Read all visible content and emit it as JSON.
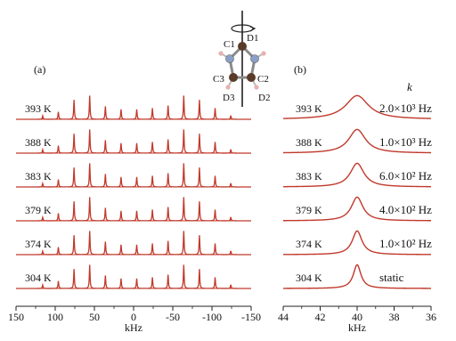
{
  "chart_data": [
    {
      "panel_label": "(a)",
      "type": "line",
      "xlabel": "kHz",
      "xlim": [
        150,
        -150
      ],
      "x_ticks": [
        150,
        100,
        50,
        0,
        -50,
        -100,
        -150
      ],
      "x_tick_labels": [
        "150",
        "100",
        "50",
        "0",
        "-50",
        "-100",
        "-150"
      ],
      "series_color": "#c0392b",
      "center_frequency_khz": -4,
      "sideband_spacing_khz": 20,
      "sideband_offsets": [
        -6,
        -5,
        -4,
        -3,
        -2,
        -1,
        0,
        1,
        2,
        3,
        4,
        5,
        6
      ],
      "sideband_relative_heights": [
        0.15,
        0.45,
        0.78,
        0.55,
        0.55,
        0.45,
        0.4,
        0.4,
        0.52,
        0.55,
        0.78,
        0.3,
        0.14
      ],
      "series": [
        {
          "name": "393 K",
          "horn_height": 0.95
        },
        {
          "name": "388 K",
          "horn_height": 0.95
        },
        {
          "name": "383 K",
          "horn_height": 0.95
        },
        {
          "name": "379 K",
          "horn_height": 0.95
        },
        {
          "name": "374 K",
          "horn_height": 0.95
        },
        {
          "name": "304 K",
          "horn_height": 0.95
        }
      ]
    },
    {
      "panel_label": "(b)",
      "type": "line",
      "xlabel": "kHz",
      "xlim": [
        44,
        36
      ],
      "x_ticks": [
        44,
        42,
        40,
        38,
        36
      ],
      "x_tick_labels": [
        "44",
        "42",
        "40",
        "38",
        "36"
      ],
      "series_color": "#c0392b",
      "peak_center_khz": 40,
      "rate_header": "k",
      "series": [
        {
          "name": "393 K",
          "rate": "2.0×10³ Hz",
          "linewidth_khz": 0.75
        },
        {
          "name": "388 K",
          "rate": "1.0×10³ Hz",
          "linewidth_khz": 0.55
        },
        {
          "name": "383 K",
          "rate": "6.0×10² Hz",
          "linewidth_khz": 0.45
        },
        {
          "name": "379 K",
          "rate": "4.0×10² Hz",
          "linewidth_khz": 0.38
        },
        {
          "name": "374 K",
          "rate": "1.0×10² Hz",
          "linewidth_khz": 0.32
        },
        {
          "name": "304 K",
          "rate": "static",
          "linewidth_khz": 0.25
        }
      ]
    }
  ],
  "molecule": {
    "labels": {
      "c1": "C1",
      "d1": "D1",
      "c2": "C2",
      "d2": "D2",
      "c3": "C3",
      "d3": "D3"
    },
    "carbon_color": "#5a3a28",
    "nitrogen_color": "#8aa0c8",
    "hydrogen_color": "#e8b0b0"
  }
}
